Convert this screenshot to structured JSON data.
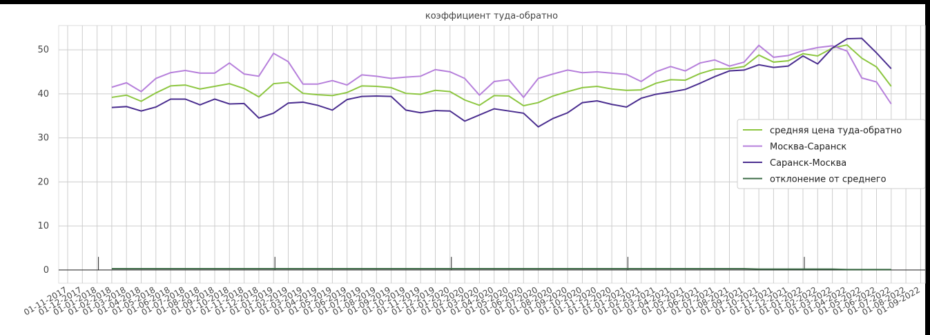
{
  "chart_data": {
    "type": "line",
    "title": "коэффициент туда-обратно",
    "categories": [
      "01-11-2017",
      "01-12-2017",
      "01-01-2018",
      "01-02-2018",
      "01-03-2018",
      "01-04-2018",
      "01-05-2018",
      "01-06-2018",
      "01-07-2018",
      "01-08-2018",
      "01-09-2018",
      "01-10-2018",
      "01-11-2018",
      "01-12-2018",
      "01-01-2019",
      "01-02-2019",
      "01-03-2019",
      "01-04-2019",
      "01-05-2019",
      "01-06-2019",
      "01-07-2019",
      "01-08-2019",
      "01-09-2019",
      "01-10-2019",
      "01-11-2019",
      "01-12-2019",
      "01-01-2020",
      "01-02-2020",
      "01-03-2020",
      "01-04-2020",
      "01-05-2020",
      "01-06-2020",
      "01-07-2020",
      "01-08-2020",
      "01-09-2020",
      "01-10-2020",
      "01-11-2020",
      "01-12-2020",
      "01-01-2021",
      "01-02-2021",
      "01-03-2021",
      "01-04-2021",
      "01-05-2021",
      "01-06-2021",
      "01-07-2021",
      "01-08-2021",
      "01-09-2021",
      "01-10-2021",
      "01-11-2021",
      "01-12-2021",
      "01-01-2022",
      "01-02-2022",
      "01-03-2022",
      "01-04-2022",
      "01-05-2022",
      "01-06-2022",
      "01-07-2022",
      "01-08-2022",
      "01-09-2022"
    ],
    "series": [
      {
        "name": "средняя цена туда-обратно",
        "color": "#8cc63f",
        "values": [
          null,
          null,
          null,
          39.2,
          39.7,
          38.3,
          40.2,
          41.8,
          42,
          41.1,
          41.7,
          42.3,
          41.2,
          39.3,
          42.3,
          42.6,
          40.1,
          39.8,
          39.6,
          40.3,
          41.8,
          41.7,
          41.4,
          40.1,
          39.9,
          40.8,
          40.5,
          38.6,
          37.4,
          39.6,
          39.5,
          37.3,
          38,
          39.5,
          40.5,
          41.4,
          41.7,
          41.1,
          40.8,
          40.9,
          42.4,
          43.2,
          43.1,
          44.6,
          45.6,
          45.7,
          46.2,
          48.8,
          47.2,
          47.5,
          49.1,
          48.6,
          50.4,
          51.1,
          48.1,
          46.1,
          41.7,
          null,
          null
        ]
      },
      {
        "name": "Москва-Саранск",
        "color": "#b67fdb",
        "values": [
          null,
          null,
          null,
          41.5,
          42.5,
          40.5,
          43.5,
          44.8,
          45.3,
          44.7,
          44.7,
          47,
          44.5,
          44,
          49.2,
          47.3,
          42.2,
          42.2,
          43,
          42,
          44.3,
          44,
          43.5,
          43.8,
          44,
          45.5,
          45,
          43.5,
          39.7,
          42.8,
          43.2,
          39.2,
          43.5,
          44.5,
          45.4,
          44.8,
          45,
          44.7,
          44.4,
          42.8,
          45,
          46.2,
          45.2,
          47,
          47.7,
          46.3,
          47.2,
          51,
          48.3,
          48.7,
          49.8,
          50.5,
          50.9,
          49.7,
          43.6,
          42.7,
          37.7,
          null,
          null
        ]
      },
      {
        "name": "Саранск-Москва",
        "color": "#4a2d8f",
        "values": [
          null,
          null,
          null,
          36.9,
          37.1,
          36.1,
          37,
          38.8,
          38.8,
          37.5,
          38.8,
          37.7,
          37.8,
          34.5,
          35.6,
          37.9,
          38.1,
          37.4,
          36.3,
          38.7,
          39.4,
          39.5,
          39.4,
          36.3,
          35.7,
          36.2,
          36.1,
          33.8,
          35.2,
          36.6,
          36.1,
          35.6,
          32.5,
          34.4,
          35.7,
          38,
          38.4,
          37.6,
          37,
          39,
          39.9,
          40.4,
          41,
          42.4,
          43.9,
          45.2,
          45.4,
          46.6,
          46,
          46.3,
          48.6,
          46.8,
          50.4,
          52.5,
          52.6,
          49.3,
          45.7,
          null,
          null
        ]
      },
      {
        "name": "отклонение от среднего",
        "color": "#3b6b45",
        "values": [
          null,
          null,
          null,
          0.3,
          0.3,
          0.3,
          0.3,
          0.3,
          0.3,
          0.3,
          0.3,
          0.3,
          0.3,
          0.3,
          0.3,
          0.3,
          0.3,
          0.3,
          0.3,
          0.3,
          0.3,
          0.3,
          0.3,
          0.3,
          0.3,
          0.3,
          0.3,
          0.3,
          0.3,
          0.3,
          0.3,
          0.3,
          0.3,
          0.3,
          0.3,
          0.3,
          0.3,
          0.3,
          0.3,
          0.3,
          0.3,
          0.3,
          0.3,
          0.3,
          0.3,
          0.3,
          0.3,
          0.2,
          0.2,
          0.2,
          0.2,
          0.2,
          0.2,
          0.1,
          0.1,
          0.1,
          0.1,
          null,
          null
        ]
      }
    ],
    "ylim": [
      -3,
      55.5
    ],
    "yticks": [
      0,
      10,
      20,
      30,
      40,
      50
    ],
    "grid": true,
    "legend": "right"
  }
}
